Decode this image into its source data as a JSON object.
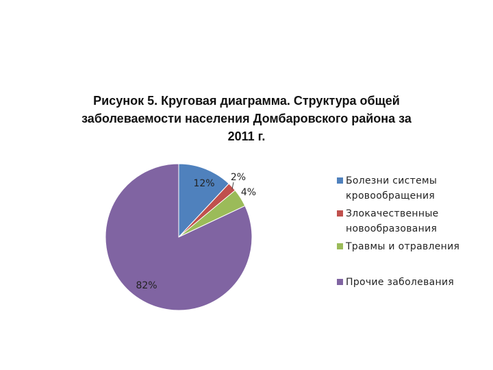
{
  "chart_data": {
    "type": "pie",
    "title_lines": [
      "Рисунок 5. Круговая диаграмма. Структура общей",
      "заболеваемости населения Домбаровского района за",
      "2011 г."
    ],
    "slices": [
      {
        "name": "Болезни системы кровообращения",
        "value": 12,
        "label": "12%",
        "color": "#4f81bd"
      },
      {
        "name": "Злокачественные новообразования",
        "value": 2,
        "label": "2%",
        "color": "#c0504d"
      },
      {
        "name": "Травмы и отравления",
        "value": 4,
        "label": "4%",
        "color": "#9bbb59"
      },
      {
        "name": "Прочие заболевания",
        "value": 82,
        "label": "82%",
        "color": "#8064a2"
      }
    ],
    "legend_position": "right"
  }
}
